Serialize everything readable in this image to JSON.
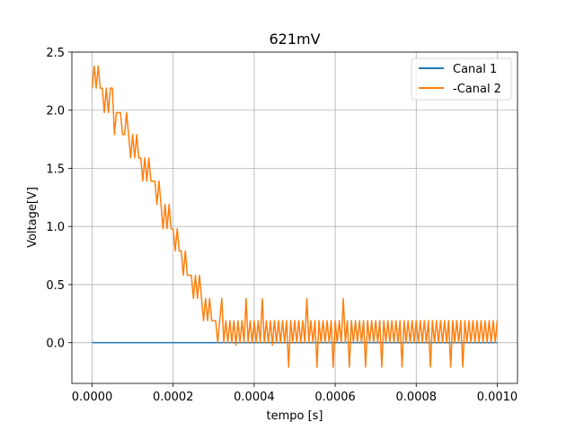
{
  "chart_data": {
    "type": "line",
    "title": "621mV",
    "xlabel": "tempo [s]",
    "ylabel": "Voltage[V]",
    "xlim": [
      -5e-05,
      0.00105
    ],
    "ylim": [
      -0.35,
      2.5
    ],
    "x_ticks": [
      0.0,
      0.0002,
      0.0004,
      0.0006,
      0.0008,
      0.001
    ],
    "x_tick_labels": [
      "0.0000",
      "0.0002",
      "0.0004",
      "0.0006",
      "0.0008",
      "0.0010"
    ],
    "y_ticks": [
      0.0,
      0.5,
      1.0,
      1.5,
      2.0,
      2.5
    ],
    "y_tick_labels": [
      "0.0",
      "0.5",
      "1.0",
      "1.5",
      "2.0",
      "2.5"
    ],
    "grid": true,
    "legend_position": "top-right",
    "series": [
      {
        "name": "Canal 1",
        "color": "#1f77b4",
        "x": [
          0.0,
          0.001
        ],
        "y": [
          0.0,
          0.0
        ]
      },
      {
        "name": "-Canal 2",
        "color": "#ff7f0e",
        "x": [
          0.0,
          5e-06,
          1e-05,
          1.5e-05,
          2e-05,
          2.5e-05,
          3e-05,
          3.5e-05,
          4e-05,
          4.5e-05,
          5e-05,
          5.5e-05,
          6e-05,
          6.5e-05,
          7e-05,
          7.5e-05,
          8e-05,
          8.5e-05,
          9e-05,
          9.5e-05,
          0.0001,
          0.000105,
          0.00011,
          0.000115,
          0.00012,
          0.000125,
          0.00013,
          0.000135,
          0.00014,
          0.000145,
          0.00015,
          0.000155,
          0.00016,
          0.000165,
          0.00017,
          0.000175,
          0.00018,
          0.000185,
          0.00019,
          0.000195,
          0.0002,
          0.000205,
          0.00021,
          0.000215,
          0.00022,
          0.000225,
          0.00023,
          0.000235,
          0.00024,
          0.000245,
          0.00025,
          0.000255,
          0.00026,
          0.000265,
          0.00027,
          0.000275,
          0.00028,
          0.000285,
          0.00029,
          0.000295,
          0.0003,
          0.000305,
          0.00031,
          0.000315,
          0.00032,
          0.000325,
          0.00033,
          0.000335,
          0.00034,
          0.000345,
          0.00035,
          0.000355,
          0.00036,
          0.000365,
          0.00037,
          0.000375,
          0.00038,
          0.000385,
          0.00039,
          0.000395,
          0.0004,
          0.000405,
          0.00041,
          0.000415,
          0.00042,
          0.000425,
          0.00043,
          0.000435,
          0.00044,
          0.000445,
          0.00045,
          0.000455,
          0.00046,
          0.000465,
          0.00047,
          0.000475,
          0.00048,
          0.000485,
          0.00049,
          0.000495,
          0.0005,
          0.000505,
          0.00051,
          0.000515,
          0.00052,
          0.000525,
          0.00053,
          0.000535,
          0.00054,
          0.000545,
          0.00055,
          0.000555,
          0.00056,
          0.000565,
          0.00057,
          0.000575,
          0.00058,
          0.000585,
          0.00059,
          0.000595,
          0.0006,
          0.000605,
          0.00061,
          0.000615,
          0.00062,
          0.000625,
          0.00063,
          0.000635,
          0.00064,
          0.000645,
          0.00065,
          0.000655,
          0.00066,
          0.000665,
          0.00067,
          0.000675,
          0.00068,
          0.000685,
          0.00069,
          0.000695,
          0.0007,
          0.000705,
          0.00071,
          0.000715,
          0.00072,
          0.000725,
          0.00073,
          0.000735,
          0.00074,
          0.000745,
          0.00075,
          0.000755,
          0.00076,
          0.000765,
          0.00077,
          0.000775,
          0.00078,
          0.000785,
          0.00079,
          0.000795,
          0.0008,
          0.000805,
          0.00081,
          0.000815,
          0.00082,
          0.000825,
          0.00083,
          0.000835,
          0.00084,
          0.000845,
          0.00085,
          0.000855,
          0.00086,
          0.000865,
          0.00087,
          0.000875,
          0.00088,
          0.000885,
          0.00089,
          0.000895,
          0.0009,
          0.000905,
          0.00091,
          0.000915,
          0.00092,
          0.000925,
          0.00093,
          0.000935,
          0.00094,
          0.000945,
          0.00095,
          0.000955,
          0.00096,
          0.000965,
          0.00097,
          0.000975,
          0.00098,
          0.000985,
          0.00099,
          0.000995,
          0.001
        ],
        "y": [
          2.19,
          2.38,
          2.19,
          2.38,
          2.19,
          2.19,
          1.98,
          2.19,
          1.98,
          2.19,
          2.19,
          1.79,
          1.98,
          1.98,
          1.98,
          1.79,
          1.79,
          1.98,
          1.79,
          1.59,
          1.79,
          1.59,
          1.79,
          1.59,
          1.59,
          1.39,
          1.59,
          1.39,
          1.59,
          1.39,
          1.39,
          1.39,
          1.19,
          1.39,
          1.19,
          0.98,
          1.19,
          0.98,
          1.19,
          0.98,
          0.98,
          0.79,
          0.98,
          0.79,
          0.79,
          0.58,
          0.79,
          0.58,
          0.58,
          0.58,
          0.38,
          0.58,
          0.38,
          0.58,
          0.38,
          0.19,
          0.38,
          0.19,
          0.38,
          0.19,
          0.19,
          0.19,
          0.0,
          0.19,
          0.38,
          0.0,
          0.19,
          0.0,
          0.19,
          0.0,
          0.19,
          -0.02,
          0.19,
          0.0,
          0.19,
          0.0,
          0.38,
          0.0,
          0.19,
          0.0,
          0.19,
          0.0,
          0.19,
          0.0,
          0.38,
          0.0,
          0.19,
          0.0,
          0.19,
          -0.02,
          0.19,
          0.0,
          0.19,
          0.0,
          0.19,
          0.0,
          0.19,
          -0.21,
          0.19,
          0.0,
          0.19,
          0.0,
          0.19,
          0.0,
          0.19,
          0.0,
          0.38,
          0.0,
          0.19,
          0.0,
          0.19,
          -0.21,
          0.19,
          0.0,
          0.19,
          0.0,
          0.19,
          0.0,
          0.19,
          -0.21,
          0.19,
          0.0,
          0.19,
          0.0,
          0.38,
          0.0,
          0.19,
          -0.21,
          0.19,
          0.0,
          0.19,
          0.0,
          0.19,
          0.0,
          0.19,
          -0.21,
          0.19,
          0.0,
          0.19,
          0.0,
          0.19,
          0.0,
          0.19,
          -0.21,
          0.19,
          0.0,
          0.19,
          0.0,
          0.19,
          0.0,
          0.19,
          0.0,
          0.19,
          -0.21,
          0.19,
          0.0,
          0.19,
          0.0,
          0.19,
          0.0,
          0.19,
          0.0,
          0.19,
          0.0,
          0.19,
          0.0,
          0.19,
          -0.21,
          0.19,
          0.0,
          0.19,
          0.0,
          0.19,
          0.0,
          0.19,
          0.0,
          0.19,
          -0.21,
          0.19,
          0.0,
          0.19,
          0.0,
          0.19,
          -0.21,
          0.19,
          0.0,
          0.19,
          0.0,
          0.19,
          0.0,
          0.19,
          0.0,
          0.19,
          0.0,
          0.19,
          0.0,
          0.19,
          0.0,
          0.19,
          0.0,
          0.19
        ]
      }
    ]
  }
}
